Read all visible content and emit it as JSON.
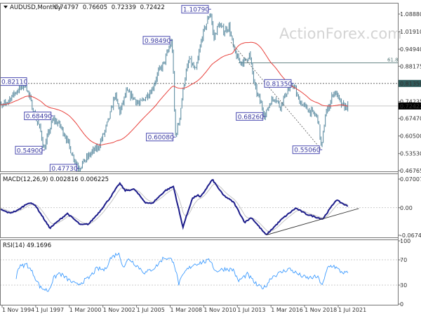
{
  "colors": {
    "bars": "#5f8ea3",
    "moving_average": "#e8413c",
    "macd": "#1c1c8a",
    "signal": "#c4c4c4",
    "rsi": "#3d9bff",
    "label_border": "#4a4ab0",
    "highlight_level_bg": "#2f5c5c",
    "current_price_bg": "#000000",
    "watermark": "#d4d4d4"
  },
  "watermark": "ActionForex.com",
  "x_ticks": [
    "1 Nov 1994",
    "1 Jul 1997",
    "1 Mar 2000",
    "1 Nov 2002",
    "1 Jul 2005",
    "1 Mar 2008",
    "1 Nov 2010",
    "1 Jul 2013",
    "1 Mar 2016",
    "1 Nov 2018",
    "1 Jul 2021"
  ],
  "chart_data": [
    {
      "type": "ohlc",
      "title": "AUDUSD,Monthly",
      "header_values": [
        "0.74797",
        "0.76605",
        "0.72339",
        "0.72422"
      ],
      "ylim": [
        0.46765,
        1.0888
      ],
      "y_ticks": [
        "1.08880",
        "1.01910",
        "0.94940",
        "0.88175",
        "0.81350",
        "0.74235",
        "0.72422",
        "0.67470",
        "0.60500",
        "0.53530",
        "0.46765"
      ],
      "current_price": "0.72422",
      "highlighted_level": "0.81350",
      "fib_label": "61.8",
      "fib_level": 0.895,
      "x_unit": "year",
      "price_anchors": [
        [
          1994.83,
          0.74
        ],
        [
          1995.3,
          0.72
        ],
        [
          1995.7,
          0.74
        ],
        [
          1996.2,
          0.77
        ],
        [
          1996.6,
          0.79
        ],
        [
          1996.9,
          0.8
        ],
        [
          1997.1,
          0.821
        ],
        [
          1997.5,
          0.75
        ],
        [
          1997.9,
          0.68
        ],
        [
          1998.3,
          0.63
        ],
        [
          1998.6,
          0.549
        ],
        [
          1998.9,
          0.61
        ],
        [
          1999.3,
          0.672
        ],
        [
          1999.8,
          0.65
        ],
        [
          2000.3,
          0.6
        ],
        [
          2000.8,
          0.53
        ],
        [
          2001.3,
          0.478
        ],
        [
          2001.8,
          0.51
        ],
        [
          2002.3,
          0.54
        ],
        [
          2002.8,
          0.56
        ],
        [
          2003.3,
          0.62
        ],
        [
          2003.8,
          0.7
        ],
        [
          2004.1,
          0.77
        ],
        [
          2004.5,
          0.7
        ],
        [
          2005.0,
          0.78
        ],
        [
          2005.5,
          0.76
        ],
        [
          2006.0,
          0.73
        ],
        [
          2006.5,
          0.76
        ],
        [
          2007.0,
          0.79
        ],
        [
          2007.5,
          0.86
        ],
        [
          2007.9,
          0.89
        ],
        [
          2008.3,
          0.95
        ],
        [
          2008.55,
          0.984
        ],
        [
          2008.7,
          0.8
        ],
        [
          2008.8,
          0.601
        ],
        [
          2009.1,
          0.66
        ],
        [
          2009.5,
          0.82
        ],
        [
          2009.9,
          0.91
        ],
        [
          2010.4,
          0.86
        ],
        [
          2010.9,
          1.0
        ],
        [
          2011.3,
          1.06
        ],
        [
          2011.55,
          1.1
        ],
        [
          2011.8,
          0.99
        ],
        [
          2012.2,
          1.05
        ],
        [
          2012.6,
          1.02
        ],
        [
          2013.0,
          1.04
        ],
        [
          2013.4,
          0.94
        ],
        [
          2013.8,
          0.9
        ],
        [
          2014.2,
          0.9
        ],
        [
          2014.6,
          0.93
        ],
        [
          2015.0,
          0.8
        ],
        [
          2015.5,
          0.73
        ],
        [
          2015.8,
          0.683
        ],
        [
          2016.2,
          0.74
        ],
        [
          2016.6,
          0.76
        ],
        [
          2016.95,
          0.72
        ],
        [
          2017.5,
          0.78
        ],
        [
          2018.0,
          0.81
        ],
        [
          2018.4,
          0.75
        ],
        [
          2018.9,
          0.72
        ],
        [
          2019.4,
          0.7
        ],
        [
          2019.9,
          0.68
        ],
        [
          2020.2,
          0.551
        ],
        [
          2020.5,
          0.69
        ],
        [
          2020.9,
          0.74
        ],
        [
          2021.1,
          0.78
        ],
        [
          2021.4,
          0.77
        ],
        [
          2021.7,
          0.73
        ],
        [
          2022.0,
          0.72
        ],
        [
          2022.25,
          0.7242
        ]
      ],
      "swing_labels": [
        {
          "date": 1997.1,
          "value": "0.82110"
        },
        {
          "date": 1999.3,
          "value": "0.68490"
        },
        {
          "date": 1998.6,
          "value": "0.54900"
        },
        {
          "date": 2001.3,
          "value": "0.47730"
        },
        {
          "date": 2008.55,
          "value": "0.98490"
        },
        {
          "date": 2008.8,
          "value": "0.60080"
        },
        {
          "date": 2011.55,
          "value": "1.10790"
        },
        {
          "date": 2015.8,
          "value": "0.68260"
        },
        {
          "date": 2018.0,
          "value": "0.81350"
        },
        {
          "date": 2020.2,
          "value": "0.55060"
        }
      ],
      "trendline": [
        [
          2013.15,
          0.977
        ],
        [
          2020.2,
          0.5506
        ]
      ]
    },
    {
      "type": "line",
      "title": "MACD(12,26,9) 0.002816 0.006225",
      "ylim": [
        -0.067423,
        0.070071
      ],
      "y_ticks": [
        "0.070071",
        "0.00",
        "-0.067423"
      ],
      "macd": [
        [
          1994.83,
          0.0
        ],
        [
          1995.9,
          -0.013
        ],
        [
          1996.52,
          -0.007
        ],
        [
          1997.36,
          0.012
        ],
        [
          1997.88,
          0.0075
        ],
        [
          1999.04,
          -0.05
        ],
        [
          2000.4,
          -0.014
        ],
        [
          2001.44,
          -0.042
        ],
        [
          2002.07,
          -0.04
        ],
        [
          2002.91,
          -0.01
        ],
        [
          2003.75,
          0.025
        ],
        [
          2004.48,
          0.06
        ],
        [
          2004.9,
          0.042
        ],
        [
          2005.63,
          0.045
        ],
        [
          2006.47,
          0.013
        ],
        [
          2006.99,
          0.01
        ],
        [
          2008.04,
          0.042
        ],
        [
          2008.67,
          0.052
        ],
        [
          2009.4,
          -0.048
        ],
        [
          2010.13,
          0.022
        ],
        [
          2010.55,
          0.031
        ],
        [
          2010.76,
          0.025
        ],
        [
          2011.7,
          0.069
        ],
        [
          2012.54,
          0.031
        ],
        [
          2013.37,
          0.013
        ],
        [
          2014.22,
          -0.036
        ],
        [
          2014.74,
          -0.024
        ],
        [
          2015.89,
          -0.067
        ],
        [
          2017.14,
          -0.027
        ],
        [
          2018.19,
          -0.001
        ],
        [
          2019.03,
          -0.016
        ],
        [
          2020.29,
          -0.028
        ],
        [
          2021.34,
          0.019
        ],
        [
          2022.28,
          0.0028
        ]
      ],
      "trendline": [
        [
          2015.89,
          -0.067
        ],
        [
          2023.1,
          -0.002
        ]
      ]
    },
    {
      "type": "line",
      "title": "RSI(14) 49.1696",
      "ylim": [
        0,
        100
      ],
      "y_ticks": [
        "100",
        "70",
        "30",
        "0"
      ],
      "levels": [
        70,
        30
      ],
      "values": [
        [
          1996.42,
          43
        ],
        [
          1996.59,
          58
        ],
        [
          1997.25,
          63
        ],
        [
          1997.78,
          47
        ],
        [
          1998.31,
          26
        ],
        [
          1998.93,
          21
        ],
        [
          1999.35,
          41
        ],
        [
          1999.77,
          49
        ],
        [
          2000.6,
          37
        ],
        [
          2001.13,
          30
        ],
        [
          2002.07,
          41
        ],
        [
          2002.7,
          56
        ],
        [
          2003.33,
          54
        ],
        [
          2003.75,
          72
        ],
        [
          2004.37,
          81
        ],
        [
          2004.79,
          59
        ],
        [
          2005.21,
          72
        ],
        [
          2006.47,
          49
        ],
        [
          2007.3,
          59
        ],
        [
          2007.93,
          74
        ],
        [
          2008.67,
          69
        ],
        [
          2009.08,
          32
        ],
        [
          2009.61,
          52
        ],
        [
          2010.24,
          63
        ],
        [
          2011.07,
          67
        ],
        [
          2011.6,
          69
        ],
        [
          2011.91,
          52
        ],
        [
          2012.75,
          56
        ],
        [
          2013.37,
          54
        ],
        [
          2013.69,
          36
        ],
        [
          2014.42,
          47
        ],
        [
          2015.26,
          28
        ],
        [
          2015.78,
          26
        ],
        [
          2016.31,
          43
        ],
        [
          2017.67,
          56
        ],
        [
          2018.4,
          47
        ],
        [
          2019.03,
          41
        ],
        [
          2019.87,
          43
        ],
        [
          2020.29,
          30
        ],
        [
          2020.7,
          59
        ],
        [
          2021.12,
          61
        ],
        [
          2021.65,
          52
        ],
        [
          2022.06,
          49
        ],
        [
          2022.28,
          49.17
        ]
      ]
    }
  ]
}
